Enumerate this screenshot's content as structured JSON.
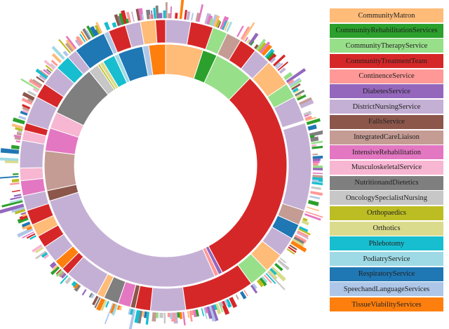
{
  "chart_data": {
    "type": "sunburst",
    "legend_position": "right",
    "categories": [
      {
        "name": "CommunityMatron",
        "color": "#ffbb78"
      },
      {
        "name": "CommunityRehabilitationServices",
        "color": "#2ca02c"
      },
      {
        "name": "CommunityTherapyService",
        "color": "#98df8a"
      },
      {
        "name": "CommunityTreatmentTeam",
        "color": "#d62728"
      },
      {
        "name": "ContinenceService",
        "color": "#ff9896"
      },
      {
        "name": "DiabetesService",
        "color": "#9467bd"
      },
      {
        "name": "DistrictNursingService",
        "color": "#c5b0d5"
      },
      {
        "name": "FallsService",
        "color": "#8c564b"
      },
      {
        "name": "IntegratedCareLiaison",
        "color": "#c49c94"
      },
      {
        "name": "IntensiveRehabilitation",
        "color": "#e377c2"
      },
      {
        "name": "MusculoskeletalService",
        "color": "#f7b6d2"
      },
      {
        "name": "NutritionandDietetics",
        "color": "#7f7f7f"
      },
      {
        "name": "OncologySpecialistNursing",
        "color": "#c7c7c7"
      },
      {
        "name": "Orthopaedics",
        "color": "#bcbd22"
      },
      {
        "name": "Orthotics",
        "color": "#dbdb8d"
      },
      {
        "name": "Phlebotomy",
        "color": "#17becf"
      },
      {
        "name": "PodiatryService",
        "color": "#9edae5"
      },
      {
        "name": "RespiratoryService",
        "color": "#1f77b4"
      },
      {
        "name": "SpeechandLanguageServices",
        "color": "#aec7e8"
      },
      {
        "name": "TissueViabilityServices",
        "color": "#ff7f0e"
      }
    ],
    "rings": [
      {
        "level": 1,
        "segments": [
          {
            "category": "CommunityMatron",
            "start_deg": 0,
            "end_deg": 18
          },
          {
            "category": "CommunityRehabilitationServices",
            "start_deg": 18,
            "end_deg": 25
          },
          {
            "category": "CommunityTherapyService",
            "start_deg": 25,
            "end_deg": 44
          },
          {
            "category": "CommunityTreatmentTeam",
            "start_deg": 44,
            "end_deg": 152
          },
          {
            "category": "DiabetesService",
            "start_deg": 152,
            "end_deg": 154
          },
          {
            "category": "ContinenceService",
            "start_deg": 154,
            "end_deg": 156
          },
          {
            "category": "DistrictNursingService",
            "start_deg": 156,
            "end_deg": 253
          },
          {
            "category": "FallsService",
            "start_deg": 253,
            "end_deg": 258
          },
          {
            "category": "IntegratedCareLiaison",
            "start_deg": 258,
            "end_deg": 277
          },
          {
            "category": "IntensiveRehabilitation",
            "start_deg": 277,
            "end_deg": 288
          },
          {
            "category": "MusculoskeletalService",
            "start_deg": 288,
            "end_deg": 296
          },
          {
            "category": "NutritionandDietetics",
            "start_deg": 296,
            "end_deg": 321
          },
          {
            "category": "OncologySpecialistNursing",
            "start_deg": 321,
            "end_deg": 326
          },
          {
            "category": "Orthopaedics",
            "start_deg": 326,
            "end_deg": 327
          },
          {
            "category": "Orthotics",
            "start_deg": 327,
            "end_deg": 329
          },
          {
            "category": "Phlebotomy",
            "start_deg": 329,
            "end_deg": 335
          },
          {
            "category": "PodiatryService",
            "start_deg": 335,
            "end_deg": 337
          },
          {
            "category": "RespiratoryService",
            "start_deg": 337,
            "end_deg": 349
          },
          {
            "category": "SpeechandLanguageServices",
            "start_deg": 349,
            "end_deg": 352
          },
          {
            "category": "TissueViabilityServices",
            "start_deg": 352,
            "end_deg": 360
          }
        ]
      },
      {
        "level": 2,
        "segments": [
          {
            "category": "DistrictNursingService",
            "start_deg": 0,
            "end_deg": 10
          },
          {
            "category": "CommunityTreatmentTeam",
            "start_deg": 10,
            "end_deg": 19
          },
          {
            "category": "CommunityTherapyService",
            "start_deg": 19,
            "end_deg": 25
          },
          {
            "category": "IntegratedCareLiaison",
            "start_deg": 25,
            "end_deg": 31
          },
          {
            "category": "CommunityTreatmentTeam",
            "start_deg": 31,
            "end_deg": 38
          },
          {
            "category": "DistrictNursingService",
            "start_deg": 38,
            "end_deg": 45
          },
          {
            "category": "CommunityMatron",
            "start_deg": 45,
            "end_deg": 56
          },
          {
            "category": "CommunityTherapyService",
            "start_deg": 56,
            "end_deg": 62
          },
          {
            "category": "DistrictNursingService",
            "start_deg": 62,
            "end_deg": 72
          },
          {
            "category": "DistrictNursingService",
            "start_deg": 73,
            "end_deg": 108
          },
          {
            "category": "IntegratedCareLiaison",
            "start_deg": 108,
            "end_deg": 114
          },
          {
            "category": "RespiratoryService",
            "start_deg": 114,
            "end_deg": 120
          },
          {
            "category": "DistrictNursingService",
            "start_deg": 120,
            "end_deg": 128
          },
          {
            "category": "CommunityMatron",
            "start_deg": 128,
            "end_deg": 136
          },
          {
            "category": "CommunityTherapyService",
            "start_deg": 136,
            "end_deg": 144
          },
          {
            "category": "CommunityTreatmentTeam",
            "start_deg": 144,
            "end_deg": 172
          },
          {
            "category": "DistrictNursingService",
            "start_deg": 172,
            "end_deg": 186
          },
          {
            "category": "CommunityTreatmentTeam",
            "start_deg": 186,
            "end_deg": 192
          },
          {
            "category": "FallsService",
            "start_deg": 192,
            "end_deg": 194
          },
          {
            "category": "IntensiveRehabilitation",
            "start_deg": 194,
            "end_deg": 199
          },
          {
            "category": "NutritionandDietetics",
            "start_deg": 199,
            "end_deg": 205
          },
          {
            "category": "CommunityMatron",
            "start_deg": 205,
            "end_deg": 208
          },
          {
            "category": "DistrictNursingService",
            "start_deg": 208,
            "end_deg": 222
          },
          {
            "category": "CommunityTreatmentTeam",
            "start_deg": 222,
            "end_deg": 225
          },
          {
            "category": "TissueViabilityServices",
            "start_deg": 225,
            "end_deg": 229
          },
          {
            "category": "DistrictNursingService",
            "start_deg": 229,
            "end_deg": 236
          },
          {
            "category": "CommunityTreatmentTeam",
            "start_deg": 236,
            "end_deg": 241
          },
          {
            "category": "CommunityMatron",
            "start_deg": 241,
            "end_deg": 246
          },
          {
            "category": "CommunityTreatmentTeam",
            "start_deg": 246,
            "end_deg": 252
          },
          {
            "category": "DistrictNursingService",
            "start_deg": 252,
            "end_deg": 258
          },
          {
            "category": "IntensiveRehabilitation",
            "start_deg": 258,
            "end_deg": 264
          },
          {
            "category": "MusculoskeletalService",
            "start_deg": 264,
            "end_deg": 269
          },
          {
            "category": "DistrictNursingService",
            "start_deg": 269,
            "end_deg": 280
          },
          {
            "category": "MusculoskeletalService",
            "start_deg": 280,
            "end_deg": 284
          },
          {
            "category": "CommunityTreatmentTeam",
            "start_deg": 284,
            "end_deg": 287
          },
          {
            "category": "DistrictNursingService",
            "start_deg": 287,
            "end_deg": 298
          },
          {
            "category": "CommunityTreatmentTeam",
            "start_deg": 298,
            "end_deg": 304
          },
          {
            "category": "DistrictNursingService",
            "start_deg": 304,
            "end_deg": 312
          },
          {
            "category": "Phlebotomy",
            "start_deg": 312,
            "end_deg": 318
          },
          {
            "category": "DistrictNursingService",
            "start_deg": 318,
            "end_deg": 322
          },
          {
            "category": "RespiratoryService",
            "start_deg": 322,
            "end_deg": 335
          },
          {
            "category": "SpeechandLanguageServices",
            "start_deg": 335,
            "end_deg": 337
          },
          {
            "category": "CommunityTreatmentTeam",
            "start_deg": 337,
            "end_deg": 344
          },
          {
            "category": "DistrictNursingService",
            "start_deg": 344,
            "end_deg": 350
          },
          {
            "category": "CommunityMatron",
            "start_deg": 350,
            "end_deg": 356
          },
          {
            "category": "CommunityTreatmentTeam",
            "start_deg": 356,
            "end_deg": 360
          }
        ]
      }
    ]
  }
}
